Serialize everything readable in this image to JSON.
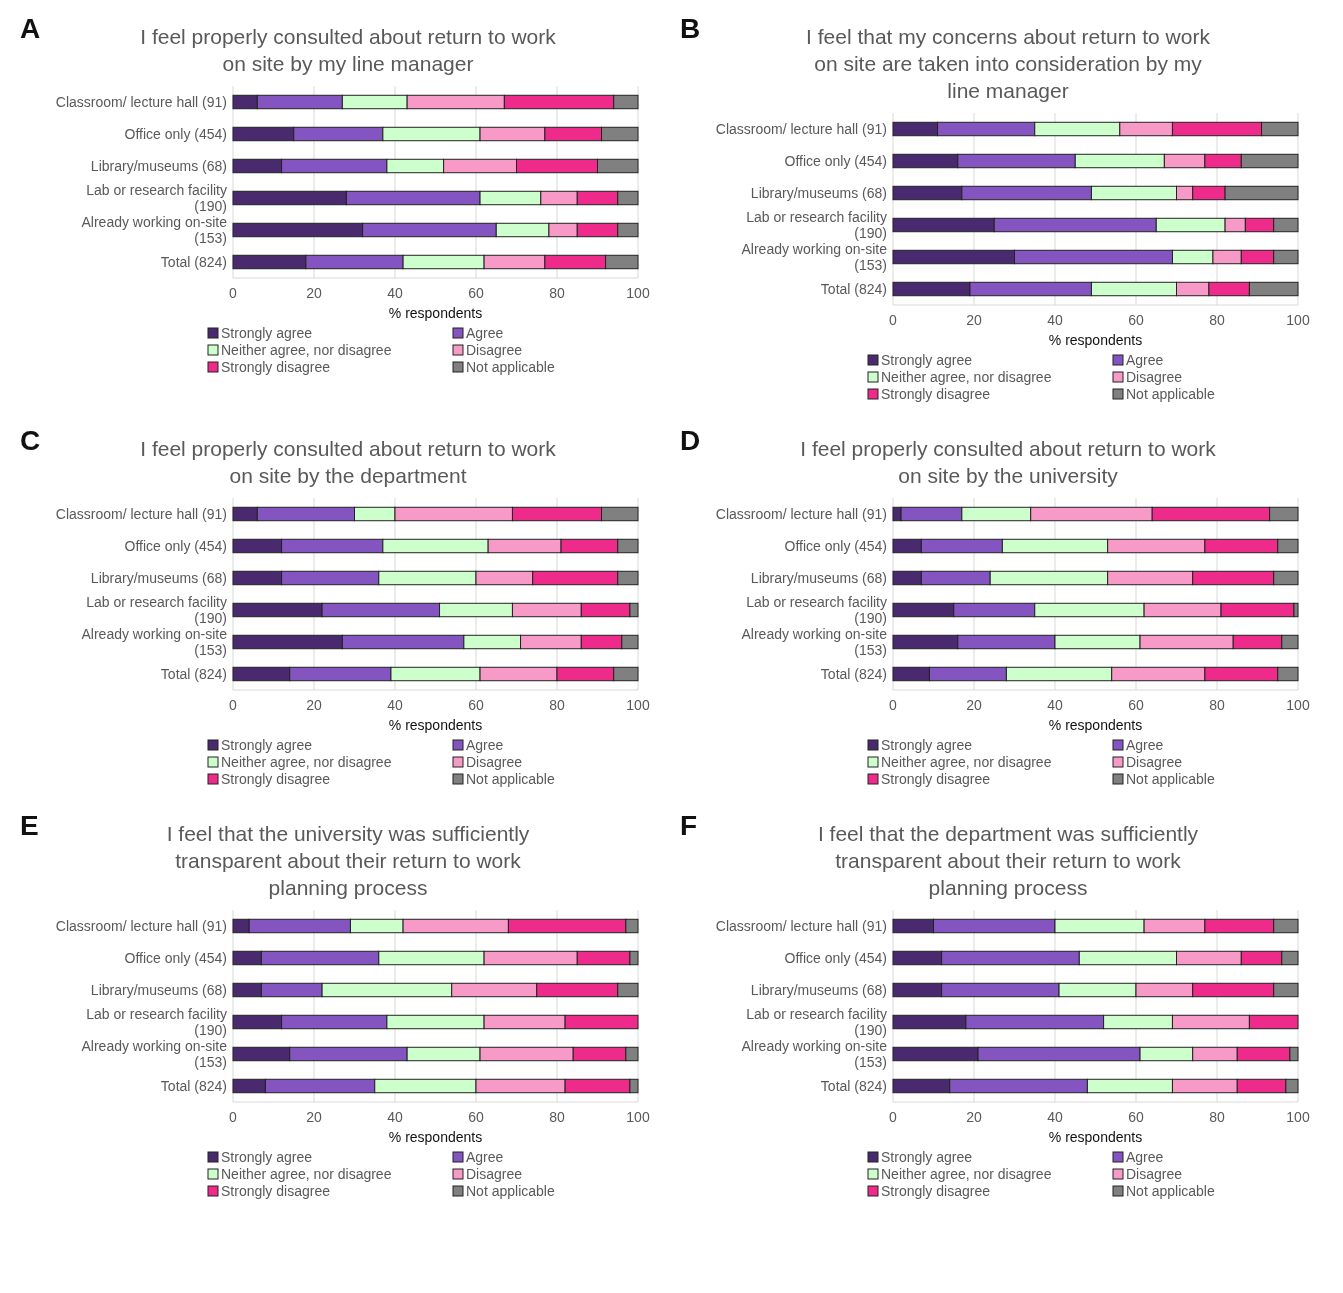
{
  "chart_data": [
    {
      "type": "bar",
      "orientation": "horizontal",
      "stacked": true,
      "title": "I feel properly consulted about return to work on site by my line manager",
      "annotations": [
        "A"
      ],
      "xlabel": "% respondents",
      "xlim": [
        0,
        100
      ],
      "xticks": [
        0,
        20,
        40,
        60,
        80,
        100
      ],
      "grid": "x",
      "legend": "bottom",
      "categories": [
        "Classroom/ lecture hall (91)",
        "Office only (454)",
        "Library/museums (68)",
        "Lab or research facility (190)",
        "Already working on-site (153)",
        "Total (824)"
      ],
      "series": [
        {
          "name": "Strongly agree",
          "color": "#4a2a6e",
          "values": [
            6,
            15,
            12,
            28,
            32,
            18
          ]
        },
        {
          "name": "Agree",
          "color": "#8455c0",
          "values": [
            21,
            22,
            26,
            33,
            33,
            24
          ]
        },
        {
          "name": "Neither agree, nor disagree",
          "color": "#ccffcc",
          "values": [
            16,
            24,
            14,
            15,
            13,
            20
          ]
        },
        {
          "name": "Disagree",
          "color": "#f79ac8",
          "values": [
            24,
            16,
            18,
            9,
            7,
            15
          ]
        },
        {
          "name": "Strongly disagree",
          "color": "#ee2a8a",
          "values": [
            27,
            14,
            20,
            10,
            10,
            15
          ]
        },
        {
          "name": "Not applicable",
          "color": "#808080",
          "values": [
            6,
            9,
            10,
            5,
            5,
            8
          ]
        }
      ]
    },
    {
      "type": "bar",
      "orientation": "horizontal",
      "stacked": true,
      "title": "I feel that my concerns about return to work on site are taken into consideration by my line manager",
      "annotations": [
        "B"
      ],
      "xlabel": "% respondents",
      "xlim": [
        0,
        100
      ],
      "xticks": [
        0,
        20,
        40,
        60,
        80,
        100
      ],
      "grid": "x",
      "legend": "bottom",
      "categories": [
        "Classroom/ lecture hall (91)",
        "Office only (454)",
        "Library/museums (68)",
        "Lab or research facility (190)",
        "Already working on-site (153)",
        "Total (824)"
      ],
      "series": [
        {
          "name": "Strongly agree",
          "color": "#4a2a6e",
          "values": [
            11,
            16,
            17,
            25,
            30,
            19
          ]
        },
        {
          "name": "Agree",
          "color": "#8455c0",
          "values": [
            24,
            29,
            32,
            40,
            39,
            30
          ]
        },
        {
          "name": "Neither agree, nor disagree",
          "color": "#ccffcc",
          "values": [
            21,
            22,
            21,
            17,
            10,
            21
          ]
        },
        {
          "name": "Disagree",
          "color": "#f79ac8",
          "values": [
            13,
            10,
            4,
            5,
            7,
            8
          ]
        },
        {
          "name": "Strongly disagree",
          "color": "#ee2a8a",
          "values": [
            22,
            9,
            8,
            7,
            8,
            10
          ]
        },
        {
          "name": "Not applicable",
          "color": "#808080",
          "values": [
            9,
            14,
            18,
            6,
            6,
            12
          ]
        }
      ]
    },
    {
      "type": "bar",
      "orientation": "horizontal",
      "stacked": true,
      "title": "I feel properly consulted about return to work on site by the department",
      "annotations": [
        "C"
      ],
      "xlabel": "% respondents",
      "xlim": [
        0,
        100
      ],
      "xticks": [
        0,
        20,
        40,
        60,
        80,
        100
      ],
      "grid": "x",
      "legend": "bottom",
      "categories": [
        "Classroom/ lecture hall (91)",
        "Office only (454)",
        "Library/museums (68)",
        "Lab or research facility (190)",
        "Already working on-site (153)",
        "Total (824)"
      ],
      "series": [
        {
          "name": "Strongly agree",
          "color": "#4a2a6e",
          "values": [
            6,
            12,
            12,
            22,
            27,
            14
          ]
        },
        {
          "name": "Agree",
          "color": "#8455c0",
          "values": [
            24,
            25,
            24,
            29,
            30,
            25
          ]
        },
        {
          "name": "Neither agree, nor disagree",
          "color": "#ccffcc",
          "values": [
            10,
            26,
            24,
            18,
            14,
            22
          ]
        },
        {
          "name": "Disagree",
          "color": "#f79ac8",
          "values": [
            29,
            18,
            14,
            17,
            15,
            19
          ]
        },
        {
          "name": "Strongly disagree",
          "color": "#ee2a8a",
          "values": [
            22,
            14,
            21,
            12,
            10,
            14
          ]
        },
        {
          "name": "Not applicable",
          "color": "#808080",
          "values": [
            9,
            5,
            5,
            2,
            4,
            6
          ]
        }
      ]
    },
    {
      "type": "bar",
      "orientation": "horizontal",
      "stacked": true,
      "title": "I feel properly consulted about return to work on site by the university",
      "annotations": [
        "D"
      ],
      "xlabel": "% respondents",
      "xlim": [
        0,
        100
      ],
      "xticks": [
        0,
        20,
        40,
        60,
        80,
        100
      ],
      "grid": "x",
      "legend": "bottom",
      "categories": [
        "Classroom/ lecture hall (91)",
        "Office only (454)",
        "Library/museums (68)",
        "Lab or research facility (190)",
        "Already working on-site (153)",
        "Total (824)"
      ],
      "series": [
        {
          "name": "Strongly agree",
          "color": "#4a2a6e",
          "values": [
            2,
            7,
            7,
            15,
            16,
            9
          ]
        },
        {
          "name": "Agree",
          "color": "#8455c0",
          "values": [
            15,
            20,
            17,
            20,
            24,
            19
          ]
        },
        {
          "name": "Neither agree, nor disagree",
          "color": "#ccffcc",
          "values": [
            17,
            26,
            29,
            27,
            21,
            26
          ]
        },
        {
          "name": "Disagree",
          "color": "#f79ac8",
          "values": [
            30,
            24,
            21,
            19,
            23,
            23
          ]
        },
        {
          "name": "Strongly disagree",
          "color": "#ee2a8a",
          "values": [
            29,
            18,
            20,
            18,
            12,
            18
          ]
        },
        {
          "name": "Not applicable",
          "color": "#808080",
          "values": [
            7,
            5,
            6,
            1,
            4,
            5
          ]
        }
      ]
    },
    {
      "type": "bar",
      "orientation": "horizontal",
      "stacked": true,
      "title": "I feel that the university was sufficiently transparent about their return to work planning process",
      "annotations": [
        "E"
      ],
      "xlabel": "% respondents",
      "xlim": [
        0,
        100
      ],
      "xticks": [
        0,
        20,
        40,
        60,
        80,
        100
      ],
      "grid": "x",
      "legend": "bottom",
      "categories": [
        "Classroom/ lecture hall (91)",
        "Office only (454)",
        "Library/museums (68)",
        "Lab or research facility (190)",
        "Already working on-site (153)",
        "Total (824)"
      ],
      "series": [
        {
          "name": "Strongly agree",
          "color": "#4a2a6e",
          "values": [
            4,
            7,
            7,
            12,
            14,
            8
          ]
        },
        {
          "name": "Agree",
          "color": "#8455c0",
          "values": [
            25,
            29,
            15,
            26,
            29,
            27
          ]
        },
        {
          "name": "Neither agree, nor disagree",
          "color": "#ccffcc",
          "values": [
            13,
            26,
            32,
            24,
            18,
            25
          ]
        },
        {
          "name": "Disagree",
          "color": "#f79ac8",
          "values": [
            26,
            23,
            21,
            20,
            23,
            22
          ]
        },
        {
          "name": "Strongly disagree",
          "color": "#ee2a8a",
          "values": [
            29,
            13,
            20,
            18,
            13,
            16
          ]
        },
        {
          "name": "Not applicable",
          "color": "#808080",
          "values": [
            3,
            2,
            5,
            0,
            3,
            2
          ]
        }
      ]
    },
    {
      "type": "bar",
      "orientation": "horizontal",
      "stacked": true,
      "title": "I feel that the department was sufficiently transparent about their return to work planning process",
      "annotations": [
        "F"
      ],
      "xlabel": "% respondents",
      "xlim": [
        0,
        100
      ],
      "xticks": [
        0,
        20,
        40,
        60,
        80,
        100
      ],
      "grid": "x",
      "legend": "bottom",
      "categories": [
        "Classroom/ lecture hall (91)",
        "Office only (454)",
        "Library/museums (68)",
        "Lab or research facility (190)",
        "Already working on-site (153)",
        "Total (824)"
      ],
      "series": [
        {
          "name": "Strongly agree",
          "color": "#4a2a6e",
          "values": [
            10,
            12,
            12,
            18,
            21,
            14
          ]
        },
        {
          "name": "Agree",
          "color": "#8455c0",
          "values": [
            30,
            34,
            29,
            34,
            40,
            34
          ]
        },
        {
          "name": "Neither agree, nor disagree",
          "color": "#ccffcc",
          "values": [
            22,
            24,
            19,
            17,
            13,
            21
          ]
        },
        {
          "name": "Disagree",
          "color": "#f79ac8",
          "values": [
            15,
            16,
            14,
            19,
            11,
            16
          ]
        },
        {
          "name": "Strongly disagree",
          "color": "#ee2a8a",
          "values": [
            17,
            10,
            20,
            12,
            13,
            12
          ]
        },
        {
          "name": "Not applicable",
          "color": "#808080",
          "values": [
            6,
            4,
            6,
            0,
            2,
            3
          ]
        }
      ]
    }
  ]
}
